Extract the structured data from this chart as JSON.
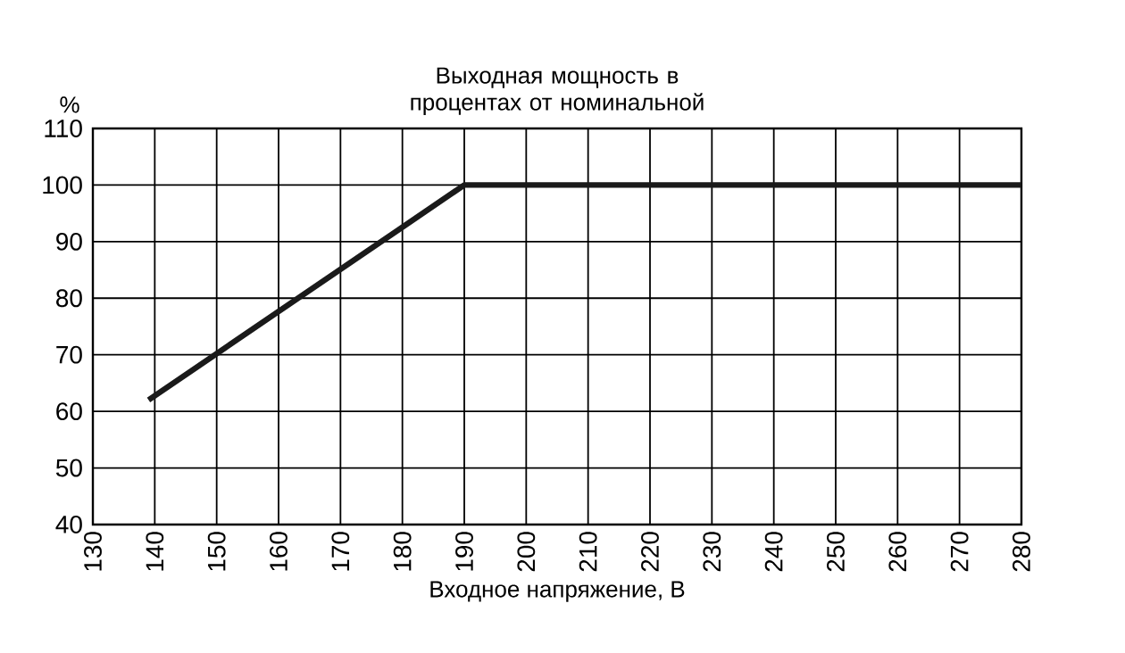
{
  "chart_data": {
    "type": "line",
    "title": "Выходная мощность в процентах от номинальной",
    "xlabel": "Входное напряжение, В",
    "ylabel": "%",
    "x": [
      139,
      190,
      280
    ],
    "series": [
      {
        "color": "#1a1a1a",
        "values": [
          62,
          100,
          100
        ]
      }
    ],
    "xlim": [
      130,
      280
    ],
    "xticks": [
      130,
      140,
      150,
      160,
      170,
      180,
      190,
      200,
      210,
      220,
      230,
      240,
      250,
      260,
      270,
      280
    ],
    "ylim": [
      40,
      110
    ],
    "yticks": [
      40,
      50,
      60,
      70,
      80,
      90,
      100,
      110
    ],
    "grid": true,
    "marker": "none",
    "line_style": "solid"
  }
}
